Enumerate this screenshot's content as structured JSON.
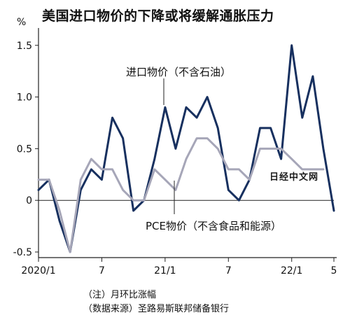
{
  "title": "美国进口物价的下降或将缓解通胀压力",
  "unit": "%",
  "watermark": "日经中文网",
  "notes": [
    "（注）月环比涨幅",
    "（数据来源）圣路易斯联邦储备银行"
  ],
  "chart_data": {
    "type": "line",
    "ylim": [
      -0.5,
      1.6
    ],
    "yticks": [
      -0.5,
      0,
      0.5,
      1.0,
      1.5
    ],
    "ytick_labels": [
      "-0.5",
      "0",
      "0.5",
      "1.0",
      "1.5"
    ],
    "x_tick_labels": [
      {
        "index": 0,
        "label": "2020/1"
      },
      {
        "index": 6,
        "label": "7"
      },
      {
        "index": 12,
        "label": "21/1"
      },
      {
        "index": 18,
        "label": "7"
      },
      {
        "index": 24,
        "label": "22/1"
      },
      {
        "index": 28,
        "label": "5"
      }
    ],
    "x": [
      "2020/1",
      "2020/2",
      "2020/3",
      "2020/4",
      "2020/5",
      "2020/6",
      "2020/7",
      "2020/8",
      "2020/9",
      "2020/10",
      "2020/11",
      "2020/12",
      "2021/1",
      "2021/2",
      "2021/3",
      "2021/4",
      "2021/5",
      "2021/6",
      "2021/7",
      "2021/8",
      "2021/9",
      "2021/10",
      "2021/11",
      "2021/12",
      "2022/1",
      "2022/2",
      "2022/3",
      "2022/4",
      "2022/5"
    ],
    "series": [
      {
        "name": "进口物价（不含石油）",
        "color": "#17305f",
        "values": [
          0.1,
          0.2,
          -0.2,
          -0.5,
          0.1,
          0.3,
          0.2,
          0.8,
          0.6,
          -0.1,
          0.0,
          0.4,
          0.9,
          0.5,
          0.9,
          0.8,
          1.0,
          0.7,
          0.1,
          0.0,
          0.2,
          0.7,
          0.7,
          0.4,
          1.5,
          0.8,
          1.2,
          0.5,
          -0.1
        ]
      },
      {
        "name": "PCE物价（不含食品和能源）",
        "color": "#a6a6b8",
        "values": [
          0.2,
          0.2,
          -0.1,
          -0.5,
          0.2,
          0.4,
          0.3,
          0.3,
          0.1,
          0.0,
          0.0,
          0.3,
          0.2,
          0.1,
          0.4,
          0.6,
          0.6,
          0.5,
          0.3,
          0.3,
          0.2,
          0.5,
          0.5,
          0.5,
          0.4,
          0.3,
          0.3,
          0.3,
          null
        ]
      }
    ]
  }
}
